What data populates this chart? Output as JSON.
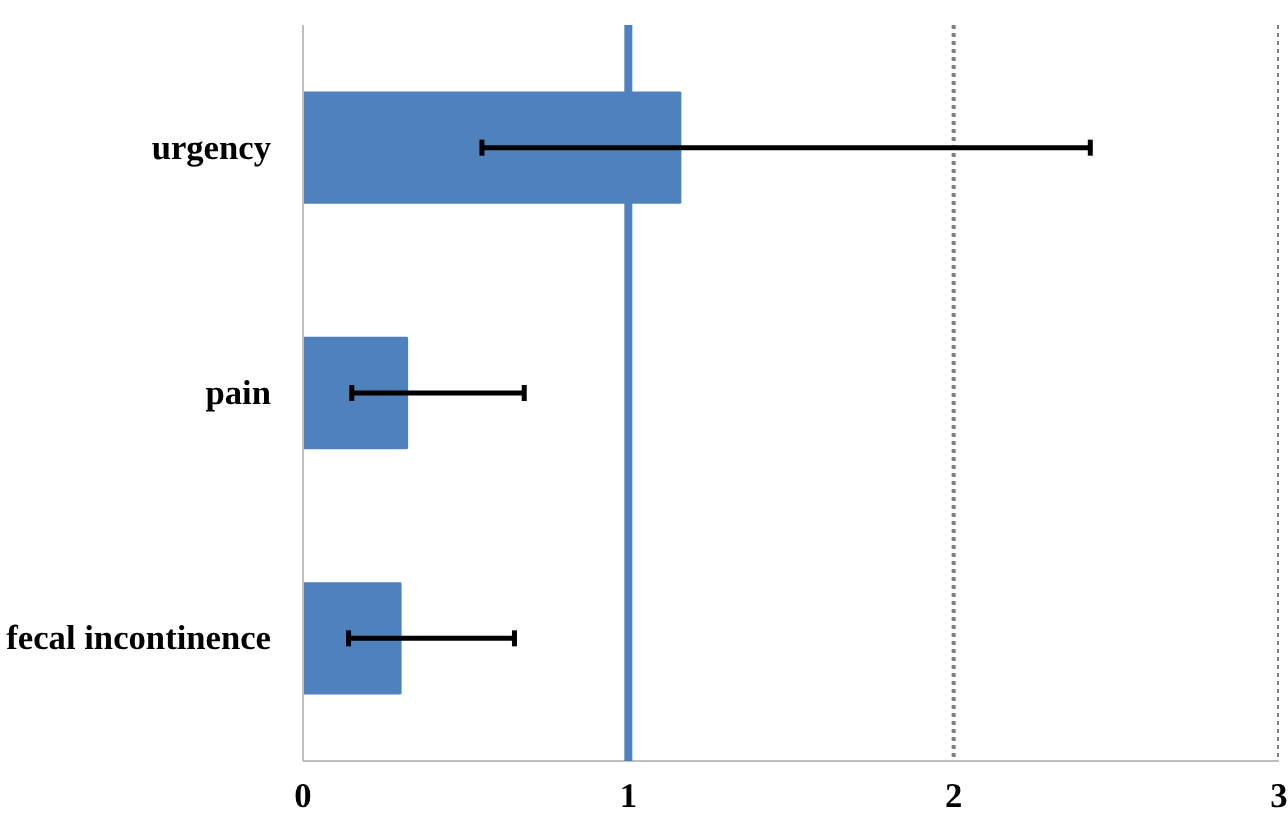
{
  "chart_data": {
    "type": "bar",
    "orientation": "horizontal",
    "categories": [
      "urgency",
      "pain",
      "fecal incontinence"
    ],
    "values": [
      1.16,
      0.32,
      0.3
    ],
    "color": "#4f81bd",
    "errors": [
      [
        0.55,
        2.42
      ],
      [
        0.15,
        0.68
      ],
      [
        0.14,
        0.65
      ]
    ],
    "xlim": [
      0,
      3
    ],
    "xticks": [
      0,
      1,
      2,
      3
    ],
    "ref_lines": [
      {
        "axis": "x",
        "value": 1,
        "color": "#4f81bd",
        "line_style": "solid"
      },
      {
        "axis": "x",
        "value": 2,
        "color": "#7f7f7f",
        "line_style": "dotted"
      },
      {
        "axis": "x",
        "value": 3,
        "color": "#7f7f7f",
        "line_style": "dotted"
      }
    ]
  }
}
